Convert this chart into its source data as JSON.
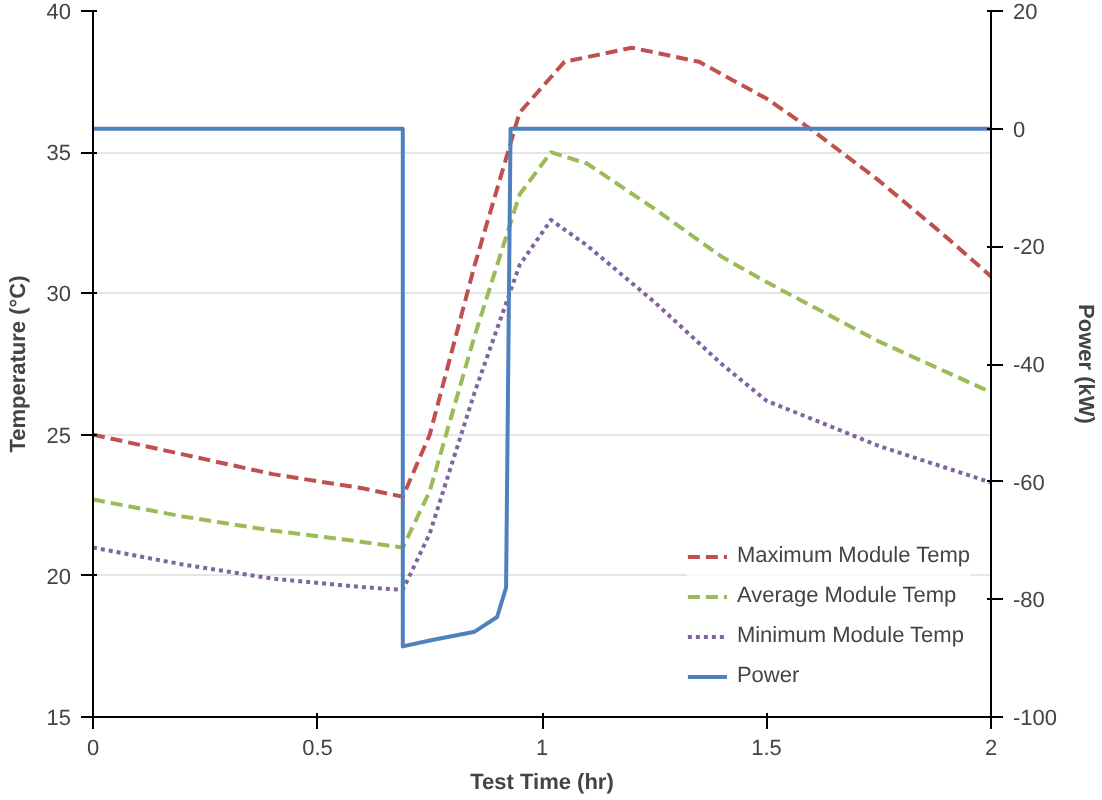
{
  "chart_data": {
    "type": "line",
    "xlabel": "Test Time (hr)",
    "ylabel": "Temperature (°C)",
    "y2label": "Power (kW)",
    "xlim": [
      0,
      2
    ],
    "xticks": [
      0,
      0.5,
      1,
      1.5,
      2
    ],
    "ylim": [
      15,
      40
    ],
    "yticks": [
      15,
      20,
      25,
      30,
      35,
      40
    ],
    "y2lim": [
      -100,
      20
    ],
    "y2ticks": [
      -100,
      -80,
      -60,
      -40,
      -20,
      0,
      20
    ],
    "grid": "y",
    "legend": "bottom right",
    "marker": "none",
    "series": [
      {
        "name": "Maximum Module Temp",
        "color": "#c0504d",
        "line_style": "dashed",
        "x": [
          0,
          0.2,
          0.4,
          0.6,
          0.69,
          0.75,
          0.85,
          0.95,
          1.05,
          1.2,
          1.35,
          1.5,
          1.6,
          1.75,
          1.9,
          2
        ],
        "values": [
          25,
          24.3,
          23.6,
          23.1,
          22.8,
          25,
          31,
          36.4,
          38.2,
          38.7,
          38.2,
          36.9,
          35.8,
          34,
          32,
          30.6
        ]
      },
      {
        "name": "Average Module Temp",
        "color": "#9bbb59",
        "line_style": "dashed",
        "x": [
          0,
          0.2,
          0.4,
          0.6,
          0.69,
          0.75,
          0.85,
          0.95,
          1.02,
          1.1,
          1.25,
          1.4,
          1.5,
          1.75,
          2
        ],
        "values": [
          22.7,
          22.1,
          21.6,
          21.2,
          21,
          23,
          28.5,
          33.5,
          35,
          34.6,
          33,
          31.3,
          30.4,
          28.3,
          26.5
        ]
      },
      {
        "name": "Minimum Module Temp",
        "color": "#8064a2",
        "line_style": "dotted",
        "x": [
          0,
          0.2,
          0.4,
          0.6,
          0.69,
          0.75,
          0.85,
          0.95,
          1.02,
          1.1,
          1.25,
          1.4,
          1.5,
          1.75,
          2
        ],
        "values": [
          21,
          20.4,
          19.9,
          19.6,
          19.5,
          21.5,
          26.5,
          31,
          32.6,
          31.7,
          29.7,
          27.5,
          26.2,
          24.6,
          23.3
        ]
      },
      {
        "name": "Power",
        "color": "#4f81bd",
        "line_style": "solid",
        "axis": "y2",
        "x": [
          0,
          0.69,
          0.69,
          0.75,
          0.85,
          0.9,
          0.92,
          0.93,
          2
        ],
        "values": [
          0,
          0,
          -88,
          -87,
          -85.5,
          -83,
          -78,
          0,
          0
        ]
      }
    ]
  }
}
